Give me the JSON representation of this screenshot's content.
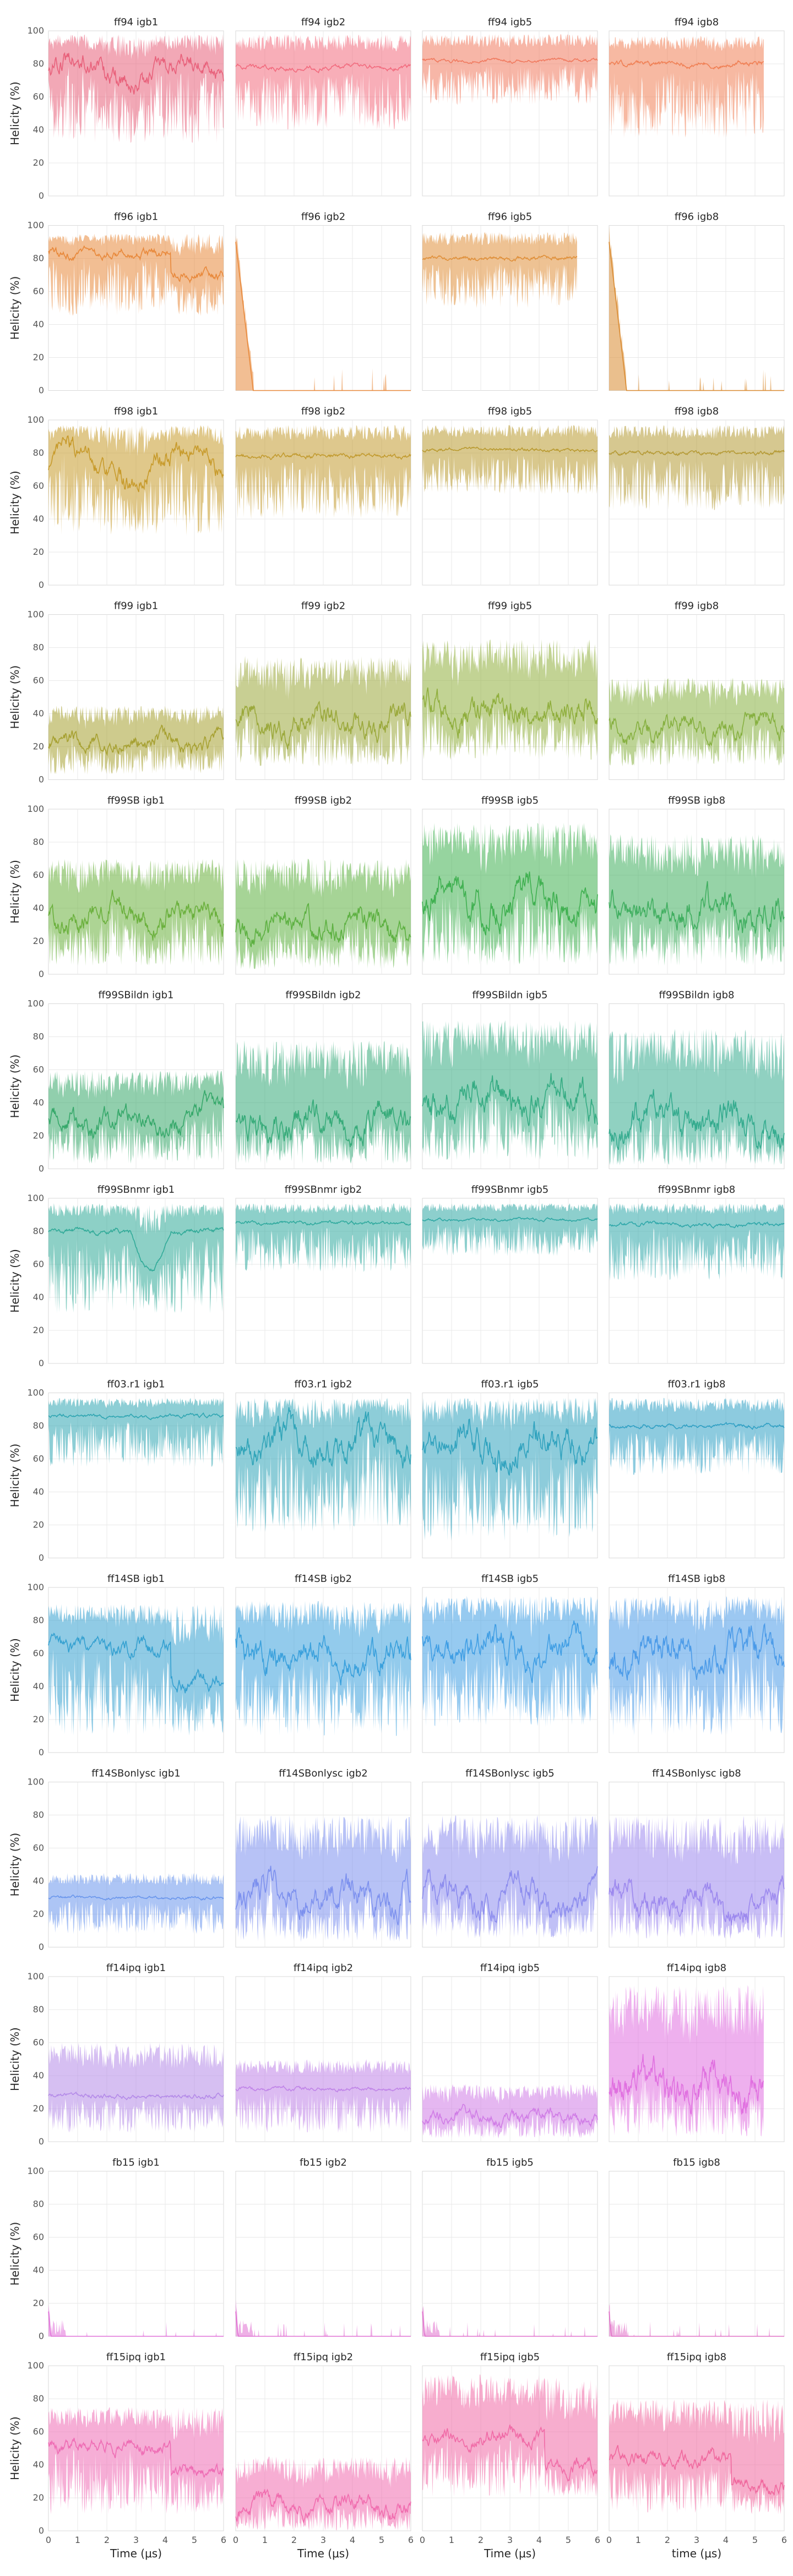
{
  "chart_data": {
    "type": "area",
    "grid": true,
    "ylabel": "Helicity (%)",
    "xlabel": "Time (μs)",
    "xlabel_last_column": "time (μs)",
    "xlim": [
      0,
      6
    ],
    "ylim": [
      0,
      100
    ],
    "xticks": [
      "0",
      "1",
      "2",
      "3",
      "4",
      "5",
      "6"
    ],
    "yticks": [
      "0",
      "20",
      "40",
      "60",
      "80",
      "100"
    ],
    "panels": [
      {
        "title": "ff94 igb1",
        "color": "#e8607a",
        "end": 6.0,
        "mean": 75,
        "low": 32,
        "high": 98,
        "pattern": "mix"
      },
      {
        "title": "ff94 igb2",
        "color": "#f26b7e",
        "end": 6.0,
        "mean": 78,
        "low": 40,
        "high": 98,
        "pattern": "flat"
      },
      {
        "title": "ff94 igb5",
        "color": "#f07a5f",
        "end": 6.0,
        "mean": 82,
        "low": 55,
        "high": 98,
        "pattern": "flat"
      },
      {
        "title": "ff94 igb8",
        "color": "#f08055",
        "end": 5.3,
        "mean": 80,
        "low": 35,
        "high": 97,
        "pattern": "flat"
      },
      {
        "title": "ff96 igb1",
        "color": "#e8883a",
        "end": 6.0,
        "mean": 78,
        "low": 45,
        "high": 95,
        "pattern": "drop"
      },
      {
        "title": "ff96 igb2",
        "color": "#e8883a",
        "end": 6.0,
        "mean": 2,
        "low": 0,
        "high": 8,
        "pattern": "collapse"
      },
      {
        "title": "ff96 igb5",
        "color": "#e0903a",
        "end": 5.3,
        "mean": 80,
        "low": 50,
        "high": 96,
        "pattern": "flat"
      },
      {
        "title": "ff96 igb8",
        "color": "#d98a30",
        "end": 6.0,
        "mean": 1,
        "low": 0,
        "high": 5,
        "pattern": "collapse"
      },
      {
        "title": "ff98 igb1",
        "color": "#c79a2a",
        "end": 6.0,
        "mean": 72,
        "low": 30,
        "high": 97,
        "pattern": "mix"
      },
      {
        "title": "ff98 igb2",
        "color": "#c29b30",
        "end": 6.0,
        "mean": 78,
        "low": 40,
        "high": 97,
        "pattern": "flat"
      },
      {
        "title": "ff98 igb5",
        "color": "#b99a30",
        "end": 6.0,
        "mean": 82,
        "low": 55,
        "high": 97,
        "pattern": "flat"
      },
      {
        "title": "ff98 igb8",
        "color": "#b59a35",
        "end": 6.0,
        "mean": 80,
        "low": 45,
        "high": 97,
        "pattern": "flat"
      },
      {
        "title": "ff99 igb1",
        "color": "#a6a030",
        "end": 6.0,
        "mean": 22,
        "low": 3,
        "high": 45,
        "pattern": "noisy"
      },
      {
        "title": "ff99 igb2",
        "color": "#9aa83a",
        "end": 6.0,
        "mean": 34,
        "low": 8,
        "high": 75,
        "pattern": "noisy"
      },
      {
        "title": "ff99 igb5",
        "color": "#8fae3c",
        "end": 6.0,
        "mean": 42,
        "low": 12,
        "high": 85,
        "pattern": "noisy"
      },
      {
        "title": "ff99 igb8",
        "color": "#86b040",
        "end": 6.0,
        "mean": 32,
        "low": 8,
        "high": 62,
        "pattern": "noisy"
      },
      {
        "title": "ff99SB igb1",
        "color": "#6ab03c",
        "end": 6.0,
        "mean": 35,
        "low": 5,
        "high": 70,
        "pattern": "noisy"
      },
      {
        "title": "ff99SB igb2",
        "color": "#5cb040",
        "end": 6.0,
        "mean": 28,
        "low": 3,
        "high": 70,
        "pattern": "noisy"
      },
      {
        "title": "ff99SB igb5",
        "color": "#3fb050",
        "end": 6.0,
        "mean": 45,
        "low": 5,
        "high": 92,
        "pattern": "noisy"
      },
      {
        "title": "ff99SB igb8",
        "color": "#3fae5f",
        "end": 6.0,
        "mean": 38,
        "low": 5,
        "high": 85,
        "pattern": "noisy"
      },
      {
        "title": "ff99SBildn igb1",
        "color": "#36a86a",
        "end": 6.0,
        "mean": 30,
        "low": 3,
        "high": 60,
        "pattern": "noisy"
      },
      {
        "title": "ff99SBildn igb2",
        "color": "#35aa78",
        "end": 6.0,
        "mean": 28,
        "low": 3,
        "high": 78,
        "pattern": "noisy"
      },
      {
        "title": "ff99SBildn igb5",
        "color": "#34ab82",
        "end": 6.0,
        "mean": 42,
        "low": 5,
        "high": 90,
        "pattern": "noisy"
      },
      {
        "title": "ff99SBildn igb8",
        "color": "#34ab8e",
        "end": 6.0,
        "mean": 30,
        "low": 2,
        "high": 85,
        "pattern": "noisy"
      },
      {
        "title": "ff99SBnmr igb1",
        "color": "#30aa98",
        "end": 6.0,
        "mean": 80,
        "low": 30,
        "high": 97,
        "pattern": "dip"
      },
      {
        "title": "ff99SBnmr igb2",
        "color": "#30aa9e",
        "end": 6.0,
        "mean": 85,
        "low": 55,
        "high": 97,
        "pattern": "flat"
      },
      {
        "title": "ff99SBnmr igb5",
        "color": "#30a8a4",
        "end": 6.0,
        "mean": 87,
        "low": 65,
        "high": 97,
        "pattern": "flat"
      },
      {
        "title": "ff99SBnmr igb8",
        "color": "#30a8aa",
        "end": 6.0,
        "mean": 84,
        "low": 50,
        "high": 97,
        "pattern": "flat"
      },
      {
        "title": "ff03.r1 igb1",
        "color": "#30a6b2",
        "end": 6.0,
        "mean": 86,
        "low": 55,
        "high": 97,
        "pattern": "flat"
      },
      {
        "title": "ff03.r1 igb2",
        "color": "#30a4b8",
        "end": 6.0,
        "mean": 70,
        "low": 15,
        "high": 97,
        "pattern": "noisy"
      },
      {
        "title": "ff03.r1 igb5",
        "color": "#30a2be",
        "end": 6.0,
        "mean": 70,
        "low": 10,
        "high": 97,
        "pattern": "noisy"
      },
      {
        "title": "ff03.r1 igb8",
        "color": "#30a0c4",
        "end": 6.0,
        "mean": 80,
        "low": 50,
        "high": 97,
        "pattern": "flat"
      },
      {
        "title": "ff14SB igb1",
        "color": "#34a0d0",
        "end": 6.0,
        "mean": 55,
        "low": 10,
        "high": 90,
        "pattern": "drop"
      },
      {
        "title": "ff14SB igb2",
        "color": "#3aa0dc",
        "end": 6.0,
        "mean": 58,
        "low": 10,
        "high": 92,
        "pattern": "noisy"
      },
      {
        "title": "ff14SB igb5",
        "color": "#409ee4",
        "end": 6.0,
        "mean": 62,
        "low": 15,
        "high": 95,
        "pattern": "noisy"
      },
      {
        "title": "ff14SB igb8",
        "color": "#4a9ae8",
        "end": 6.0,
        "mean": 60,
        "low": 10,
        "high": 95,
        "pattern": "noisy"
      },
      {
        "title": "ff14SBonlysc igb1",
        "color": "#6a96ec",
        "end": 6.0,
        "mean": 30,
        "low": 8,
        "high": 45,
        "pattern": "flat"
      },
      {
        "title": "ff14SBonlysc igb2",
        "color": "#7c90ee",
        "end": 6.0,
        "mean": 30,
        "low": 3,
        "high": 80,
        "pattern": "noisy"
      },
      {
        "title": "ff14SBonlysc igb5",
        "color": "#8c8cee",
        "end": 6.0,
        "mean": 30,
        "low": 5,
        "high": 80,
        "pattern": "noisy"
      },
      {
        "title": "ff14SBonlysc igb8",
        "color": "#9c88ee",
        "end": 6.0,
        "mean": 28,
        "low": 5,
        "high": 80,
        "pattern": "noisy"
      },
      {
        "title": "ff14ipq igb1",
        "color": "#b48ae8",
        "end": 6.0,
        "mean": 28,
        "low": 5,
        "high": 60,
        "pattern": "flat"
      },
      {
        "title": "ff14ipq igb2",
        "color": "#c084e8",
        "end": 6.0,
        "mean": 32,
        "low": 5,
        "high": 50,
        "pattern": "flat"
      },
      {
        "title": "ff14ipq igb5",
        "color": "#d07ce6",
        "end": 6.0,
        "mean": 15,
        "low": 2,
        "high": 35,
        "pattern": "noisy"
      },
      {
        "title": "ff14ipq igb8",
        "color": "#e070e0",
        "end": 5.3,
        "mean": 35,
        "low": 3,
        "high": 95,
        "pattern": "noisy"
      },
      {
        "title": "fb15 igb1",
        "color": "#e070d8",
        "end": 6.0,
        "mean": 0,
        "low": 0,
        "high": 1,
        "pattern": "zero"
      },
      {
        "title": "fb15 igb2",
        "color": "#e070d2",
        "end": 6.0,
        "mean": 0,
        "low": 0,
        "high": 1,
        "pattern": "zero"
      },
      {
        "title": "fb15 igb5",
        "color": "#e070cc",
        "end": 6.0,
        "mean": 0,
        "low": 0,
        "high": 1,
        "pattern": "zero"
      },
      {
        "title": "fb15 igb8",
        "color": "#e070c6",
        "end": 6.0,
        "mean": 0,
        "low": 0,
        "high": 1,
        "pattern": "zero"
      },
      {
        "title": "ff15ipq igb1",
        "color": "#ee6cb4",
        "end": 6.0,
        "mean": 45,
        "low": 10,
        "high": 75,
        "pattern": "drop"
      },
      {
        "title": "ff15ipq igb2",
        "color": "#f06cae",
        "end": 6.0,
        "mean": 15,
        "low": 0,
        "high": 45,
        "pattern": "noisy"
      },
      {
        "title": "ff15ipq igb5",
        "color": "#f06aa6",
        "end": 6.0,
        "mean": 50,
        "low": 20,
        "high": 95,
        "pattern": "drop"
      },
      {
        "title": "ff15ipq igb8",
        "color": "#f0689e",
        "end": 6.0,
        "mean": 38,
        "low": 10,
        "high": 80,
        "pattern": "drop"
      }
    ]
  }
}
